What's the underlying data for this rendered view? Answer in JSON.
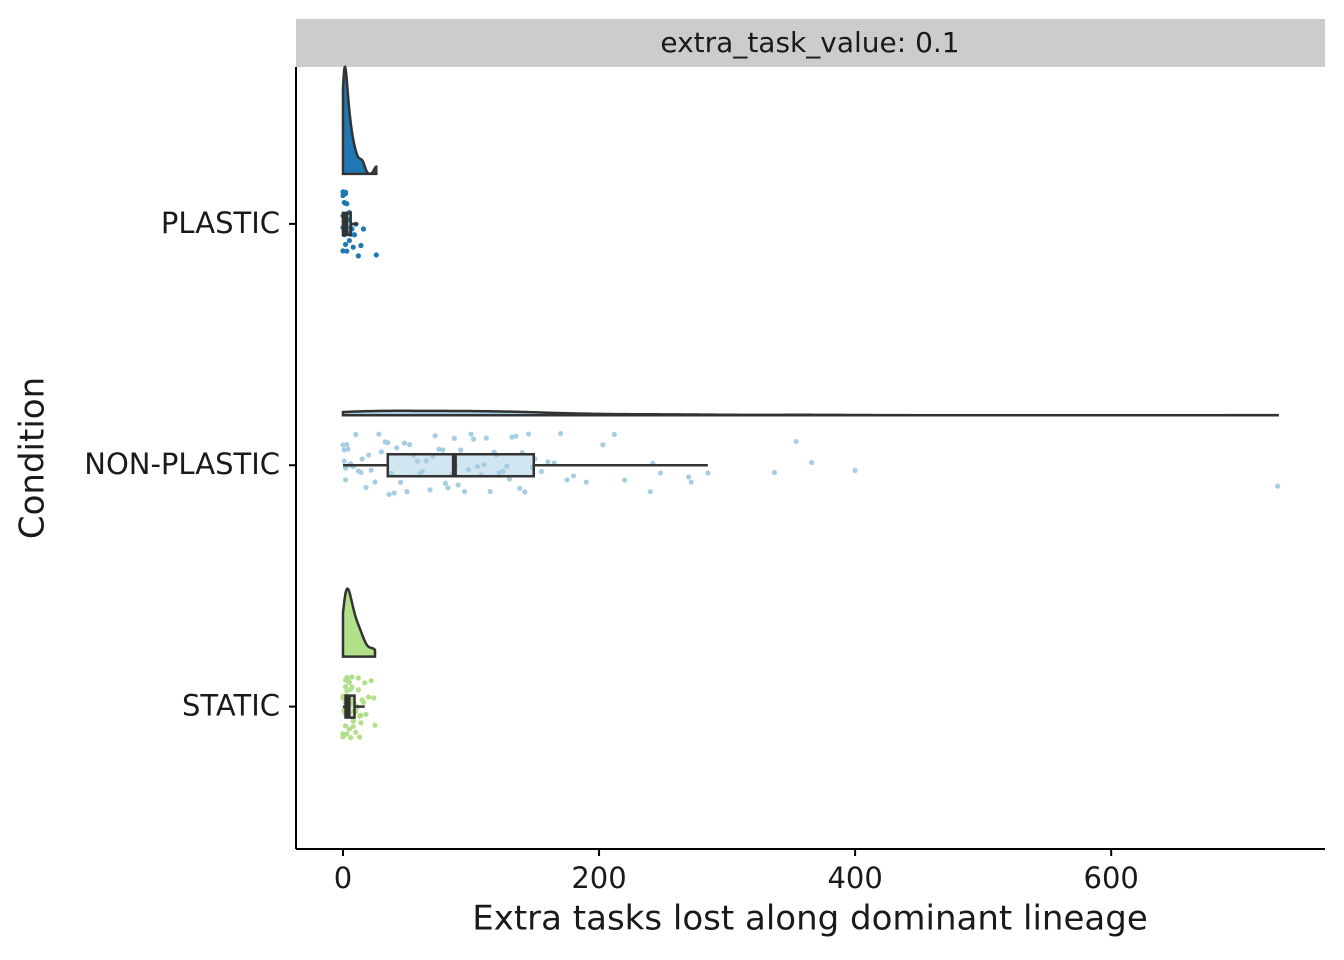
{
  "chart_data": {
    "type": "raincloud",
    "strip_label": "extra_task_value: 0.1",
    "x_label": "Extra tasks lost along dominant lineage",
    "y_label": "Condition",
    "xlim": [
      -36.7,
      767
    ],
    "xticks": [
      0,
      200,
      400,
      600
    ],
    "categories": [
      "PLASTIC",
      "NON-PLASTIC",
      "STATIC"
    ],
    "series": [
      {
        "name": "PLASTIC",
        "color": "#1f78b4",
        "box": {
          "whisker_low": 0,
          "q1": 0,
          "median": 2,
          "q3": 6,
          "whisker_high": 12
        },
        "points": [
          0,
          0,
          0,
          0,
          0,
          1,
          1,
          1,
          1,
          1,
          2,
          2,
          2,
          2,
          3,
          3,
          3,
          4,
          4,
          5,
          5,
          6,
          6,
          7,
          8,
          9,
          10,
          12,
          14,
          16,
          26
        ]
      },
      {
        "name": "NON-PLASTIC",
        "color": "#a6cee3",
        "box": {
          "whisker_low": 0,
          "q1": 35,
          "median": 87,
          "q3": 149,
          "whisker_high": 285
        },
        "points": [
          0,
          1,
          1,
          2,
          2,
          3,
          4,
          5,
          6,
          8,
          10,
          12,
          14,
          15,
          18,
          20,
          22,
          25,
          28,
          30,
          33,
          35,
          36,
          38,
          40,
          42,
          45,
          48,
          50,
          52,
          55,
          58,
          60,
          62,
          65,
          68,
          70,
          72,
          75,
          78,
          80,
          82,
          85,
          87,
          88,
          90,
          92,
          95,
          98,
          100,
          102,
          105,
          108,
          110,
          112,
          115,
          118,
          120,
          122,
          125,
          128,
          130,
          132,
          135,
          138,
          140,
          142,
          145,
          148,
          150,
          155,
          160,
          165,
          170,
          175,
          180,
          190,
          203,
          212,
          220,
          240,
          242,
          248,
          270,
          272,
          285,
          337,
          354,
          366,
          400,
          730
        ]
      },
      {
        "name": "STATIC",
        "color": "#b2df8a",
        "box": {
          "whisker_low": 0,
          "q1": 2,
          "median": 4,
          "q3": 9,
          "whisker_high": 17
        },
        "points": [
          0,
          0,
          0,
          0,
          1,
          1,
          1,
          1,
          1,
          2,
          2,
          2,
          2,
          2,
          3,
          3,
          3,
          3,
          3,
          4,
          4,
          4,
          4,
          4,
          5,
          5,
          5,
          5,
          6,
          6,
          6,
          6,
          7,
          7,
          7,
          8,
          8,
          8,
          9,
          9,
          9,
          10,
          10,
          11,
          11,
          12,
          12,
          13,
          13,
          14,
          14,
          15,
          16,
          17,
          18,
          20,
          22,
          24,
          25
        ]
      }
    ]
  }
}
